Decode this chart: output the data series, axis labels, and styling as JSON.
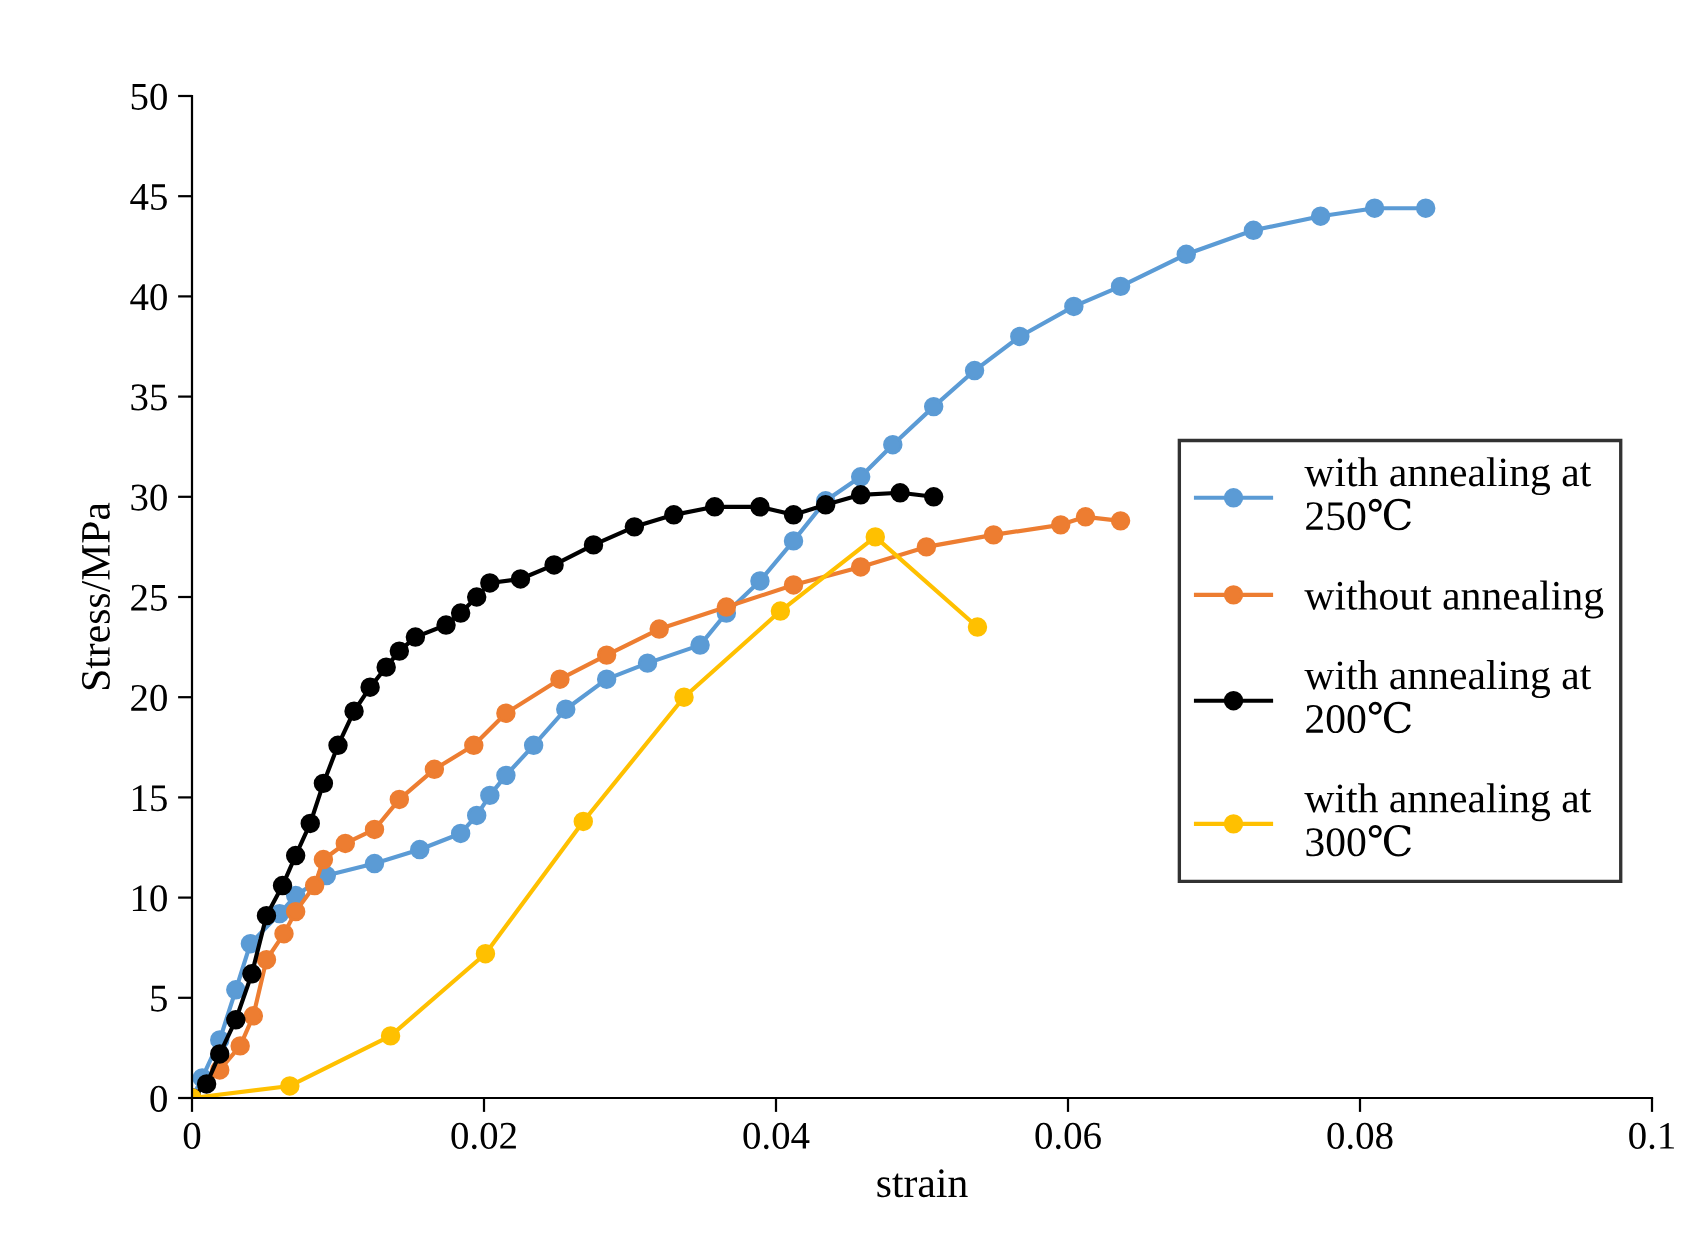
{
  "chart_data": {
    "type": "line",
    "xlabel": "strain",
    "ylabel": "Stress/MPa",
    "xlim": [
      0,
      0.1
    ],
    "xticks": [
      0,
      0.02,
      0.04,
      0.06,
      0.08,
      0.1
    ],
    "ylim": [
      0,
      50
    ],
    "yticks": [
      0,
      5,
      10,
      15,
      20,
      25,
      30,
      35,
      40,
      45,
      50
    ],
    "grid": false,
    "legend": "right",
    "marker": "circle",
    "line_style": "solid",
    "series": [
      {
        "name": "with annealing at 250℃",
        "color": "#5b9bd5",
        "x": [
          0,
          0.0007,
          0.0019,
          0.003,
          0.004,
          0.006,
          0.0071,
          0.0092,
          0.0125,
          0.0156,
          0.0184,
          0.0195,
          0.0204,
          0.0215,
          0.0234,
          0.0256,
          0.0284,
          0.0312,
          0.0348,
          0.0366,
          0.0389,
          0.0412,
          0.0434,
          0.0458,
          0.048,
          0.0508,
          0.0536,
          0.0567,
          0.0604,
          0.0636,
          0.0681,
          0.0727,
          0.0773,
          0.081,
          0.0845
        ],
        "values": [
          0,
          1,
          2.9,
          5.4,
          7.7,
          9.2,
          10.1,
          11.1,
          11.7,
          12.4,
          13.2,
          14.1,
          15.1,
          16.1,
          17.6,
          19.4,
          20.9,
          21.7,
          22.6,
          24.2,
          25.8,
          27.8,
          29.8,
          31,
          32.6,
          34.5,
          36.3,
          38,
          39.5,
          40.5,
          42.1,
          43.3,
          44,
          44.4,
          44.4
        ]
      },
      {
        "name": "without annealing",
        "color": "#ed7d31",
        "x": [
          0,
          0.0019,
          0.0033,
          0.0042,
          0.0051,
          0.0063,
          0.0071,
          0.0084,
          0.009,
          0.0105,
          0.0125,
          0.0142,
          0.0166,
          0.0193,
          0.0215,
          0.0252,
          0.0284,
          0.032,
          0.0366,
          0.0412,
          0.0458,
          0.0503,
          0.0549,
          0.0595,
          0.0612,
          0.0636
        ],
        "values": [
          0,
          1.4,
          2.6,
          4.1,
          6.9,
          8.2,
          9.3,
          10.6,
          11.9,
          12.7,
          13.4,
          14.9,
          16.4,
          17.6,
          19.2,
          20.9,
          22.1,
          23.4,
          24.5,
          25.6,
          26.5,
          27.5,
          28.1,
          28.6,
          29,
          28.8
        ]
      },
      {
        "name": "with annealing at 200℃",
        "color": "#000000",
        "x": [
          0,
          0.001,
          0.0019,
          0.003,
          0.0041,
          0.0051,
          0.0062,
          0.0071,
          0.0081,
          0.009,
          0.01,
          0.0111,
          0.0122,
          0.0133,
          0.0142,
          0.0153,
          0.0174,
          0.0184,
          0.0195,
          0.0204,
          0.0225,
          0.0248,
          0.0275,
          0.0303,
          0.033,
          0.0358,
          0.0389,
          0.0412,
          0.0434,
          0.0458,
          0.0485,
          0.0508
        ],
        "values": [
          0,
          0.7,
          2.2,
          3.9,
          6.2,
          9.1,
          10.6,
          12.1,
          13.7,
          15.7,
          17.6,
          19.3,
          20.5,
          21.5,
          22.3,
          23,
          23.6,
          24.2,
          25,
          25.7,
          25.9,
          26.6,
          27.6,
          28.5,
          29.1,
          29.5,
          29.5,
          29.1,
          29.6,
          30.1,
          30.2,
          30
        ]
      },
      {
        "name": "with annealing at 300℃",
        "color": "#ffc000",
        "x": [
          0,
          0.0067,
          0.0136,
          0.0201,
          0.0268,
          0.0337,
          0.0403,
          0.0468,
          0.0538
        ],
        "values": [
          0,
          0.6,
          3.1,
          7.2,
          13.8,
          20,
          24.3,
          28,
          23.5
        ]
      }
    ]
  }
}
